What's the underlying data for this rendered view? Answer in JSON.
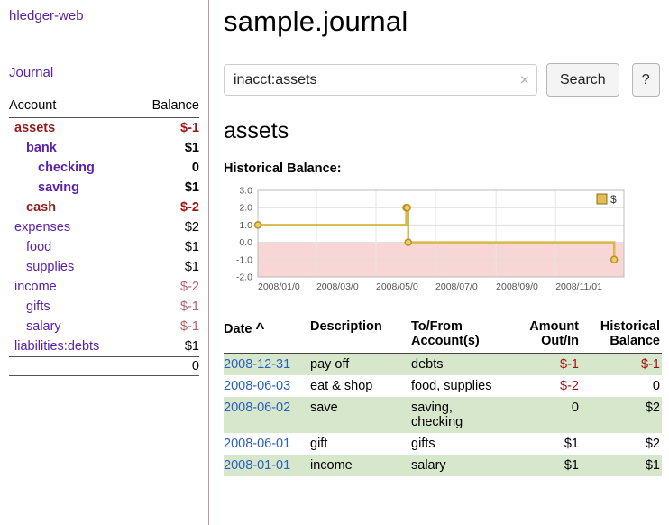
{
  "colors": {
    "link_purple": "#5b21a8",
    "date_link_blue": "#2a5fc0",
    "negative_strong": "#9e1313",
    "negative_soft": "#b4636d",
    "row_stripe_green": "#d7e7cb"
  },
  "sidebar": {
    "app_title": "hledger-web",
    "journal_link": "Journal",
    "accounts_table": {
      "account_header": "Account",
      "balance_header": "Balance",
      "rows": [
        {
          "name": "assets",
          "balance": "$-1"
        },
        {
          "name": "bank",
          "balance": "$1"
        },
        {
          "name": "checking",
          "balance": "0"
        },
        {
          "name": "saving",
          "balance": "$1"
        },
        {
          "name": "cash",
          "balance": "$-2"
        },
        {
          "name": "expenses",
          "balance": "$2"
        },
        {
          "name": "food",
          "balance": "$1"
        },
        {
          "name": "supplies",
          "balance": "$1"
        },
        {
          "name": "income",
          "balance": "$-2"
        },
        {
          "name": "gifts",
          "balance": "$-1"
        },
        {
          "name": "salary",
          "balance": "$-1"
        },
        {
          "name": "liabilities:debts",
          "balance": "$1"
        }
      ],
      "total_balance": "0"
    }
  },
  "main": {
    "title": "sample.journal",
    "search": {
      "value": "inacct:assets",
      "clear_icon": "×",
      "button_label": "Search",
      "help_label": "?"
    },
    "account_heading": "assets",
    "chart_title": "Historical Balance:"
  },
  "chart_data": {
    "type": "line",
    "step": true,
    "title": "Historical Balance:",
    "series": [
      {
        "name": "$",
        "points": [
          {
            "date": "2008-01-01",
            "value": 1
          },
          {
            "date": "2008-06-01",
            "value": 2
          },
          {
            "date": "2008-06-02",
            "value": 2
          },
          {
            "date": "2008-06-03",
            "value": 0
          },
          {
            "date": "2008-12-31",
            "value": -1
          }
        ]
      }
    ],
    "ylim": [
      -2,
      3
    ],
    "yticks": [
      {
        "value": 3,
        "label": "3.0"
      },
      {
        "value": 2,
        "label": "2.0"
      },
      {
        "value": 1,
        "label": "1.0"
      },
      {
        "value": 0,
        "label": "0.0"
      },
      {
        "value": -1,
        "label": "-1.0"
      },
      {
        "value": -2,
        "label": "-2.0"
      }
    ],
    "x_domain": [
      "2008-01-01",
      "2009-01-10"
    ],
    "xticks": [
      {
        "date": "2008-01-01",
        "label": "2008/01/0"
      },
      {
        "date": "2008-03-01",
        "label": "2008/03/0"
      },
      {
        "date": "2008-05-01",
        "label": "2008/05/0"
      },
      {
        "date": "2008-07-01",
        "label": "2008/07/0"
      },
      {
        "date": "2008-09-01",
        "label": "2008/09/0"
      },
      {
        "date": "2008-11-01",
        "label": "2008/11/01"
      }
    ],
    "grid": true,
    "legend_position": "top-right",
    "legend": {
      "label": "$",
      "color": "#e3bd53"
    },
    "line_color": "#d8b84a",
    "negative_region_color": "#f9d6d6"
  },
  "register": {
    "sort_indicator": "^",
    "headers": {
      "date": "Date",
      "description": "Description",
      "account": "To/From Account(s)",
      "amount": "Amount Out/In",
      "balance": "Historical Balance"
    },
    "rows": [
      {
        "date": "2008-12-31",
        "description": "pay off",
        "accounts": "debts",
        "amount": "$-1",
        "balance": "$-1"
      },
      {
        "date": "2008-06-03",
        "description": "eat & shop",
        "accounts": "food, supplies",
        "amount": "$-2",
        "balance": "0"
      },
      {
        "date": "2008-06-02",
        "description": "save",
        "accounts": "saving, checking",
        "amount": "0",
        "balance": "$2"
      },
      {
        "date": "2008-06-01",
        "description": "gift",
        "accounts": "gifts",
        "amount": "$1",
        "balance": "$2"
      },
      {
        "date": "2008-01-01",
        "description": "income",
        "accounts": "salary",
        "amount": "$1",
        "balance": "$1"
      }
    ]
  }
}
